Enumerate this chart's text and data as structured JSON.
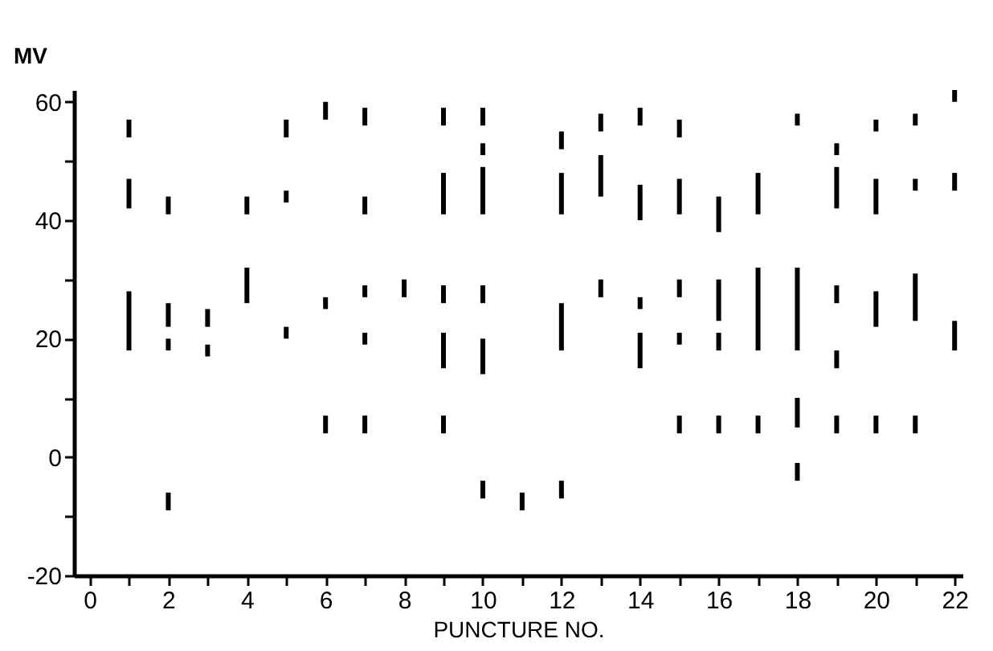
{
  "chart_data": {
    "type": "bar",
    "xlabel": "PUNCTURE NO.",
    "ylabel": "MV",
    "series": [
      {
        "color": "#000000",
        "x": [
          1,
          2,
          3,
          4,
          5,
          6,
          7,
          8,
          9,
          10,
          11,
          12,
          13,
          14,
          15,
          16,
          17,
          18,
          19,
          20,
          21,
          22
        ],
        "base": [
          54,
          41,
          22,
          41,
          54,
          57,
          56,
          27,
          56,
          56,
          -9,
          52,
          55,
          56,
          54,
          38,
          41,
          56,
          51,
          55,
          56,
          60
        ],
        "values": [
          3,
          3,
          3,
          3,
          3,
          3,
          3,
          3,
          3,
          3,
          3,
          3,
          3,
          3,
          3,
          6,
          7,
          2,
          2,
          2,
          2,
          2
        ]
      },
      {
        "color": "#000000",
        "x": [
          1,
          2,
          3,
          4,
          5,
          6,
          7,
          9,
          10,
          12,
          13,
          14,
          15,
          16,
          17,
          18,
          19,
          20,
          21,
          22
        ],
        "base": [
          42,
          22,
          17,
          26,
          43,
          25,
          41,
          41,
          51,
          41,
          44,
          40,
          41,
          23,
          18,
          18,
          42,
          41,
          45,
          45
        ],
        "values": [
          5,
          4,
          2,
          6,
          2,
          2,
          3,
          7,
          2,
          7,
          7,
          6,
          6,
          7,
          14,
          14,
          7,
          6,
          2,
          3
        ]
      },
      {
        "color": "#000000",
        "x": [
          1,
          2,
          5,
          6,
          7,
          9,
          10,
          12,
          13,
          14,
          15,
          16,
          17,
          18,
          19,
          20,
          21,
          22
        ],
        "base": [
          18,
          18,
          20,
          4,
          27,
          26,
          41,
          18,
          27,
          25,
          27,
          18,
          4,
          5,
          26,
          22,
          23,
          18
        ],
        "values": [
          10,
          2,
          2,
          3,
          2,
          3,
          8,
          8,
          3,
          2,
          3,
          3,
          3,
          5,
          3,
          6,
          8,
          5
        ]
      },
      {
        "color": "#000000",
        "x": [
          2,
          7,
          9,
          10,
          12,
          14,
          15,
          16,
          18,
          19,
          20,
          21
        ],
        "base": [
          -9,
          19,
          15,
          26,
          -7,
          15,
          19,
          4,
          -4,
          15,
          4,
          4
        ],
        "values": [
          3,
          2,
          6,
          3,
          3,
          6,
          2,
          3,
          3,
          3,
          3,
          3
        ]
      },
      {
        "color": "#000000",
        "x": [
          7,
          9,
          10,
          15,
          19
        ],
        "base": [
          4,
          4,
          14,
          4,
          4
        ],
        "values": [
          3,
          3,
          6,
          3,
          3
        ]
      },
      {
        "color": "#000000",
        "x": [
          10
        ],
        "base": [
          -7
        ],
        "values": [
          3
        ]
      }
    ],
    "xlim": [
      -0.4,
      22.2
    ],
    "xticks": [
      0,
      {
        "value": 1,
        "label": null
      },
      2,
      {
        "value": 3,
        "label": null
      },
      4,
      {
        "value": 5,
        "label": null
      },
      6,
      {
        "value": 7,
        "label": null
      },
      8,
      {
        "value": 9,
        "label": null
      },
      10,
      {
        "value": 11,
        "label": null
      },
      12,
      {
        "value": 13,
        "label": null
      },
      14,
      {
        "value": 15,
        "label": null
      },
      16,
      {
        "value": 17,
        "label": null
      },
      18,
      {
        "value": 19,
        "label": null
      },
      20,
      {
        "value": 21,
        "label": null
      },
      22
    ],
    "ylim": [
      -20,
      62
    ],
    "yticks": [
      -20,
      {
        "value": -10,
        "label": null
      },
      0,
      {
        "value": 10,
        "label": null
      },
      20,
      {
        "value": 30,
        "label": null
      },
      40,
      {
        "value": 50,
        "label": null
      },
      60
    ],
    "grid": false
  }
}
